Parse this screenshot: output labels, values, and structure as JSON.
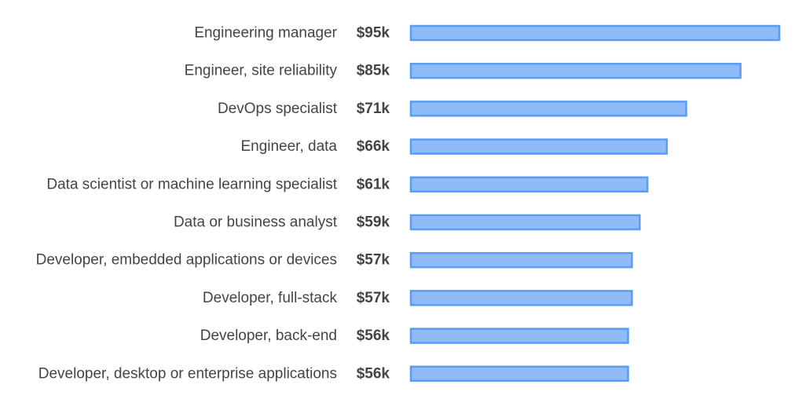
{
  "chart_data": {
    "type": "bar",
    "orientation": "horizontal",
    "categories": [
      "Engineering manager",
      "Engineer, site reliability",
      "DevOps specialist",
      "Engineer, data",
      "Data scientist or machine learning specialist",
      "Data or business analyst",
      "Developer, embedded applications or devices",
      "Developer, full-stack",
      "Developer, back-end",
      "Developer, desktop or enterprise applications"
    ],
    "values": [
      95,
      85,
      71,
      66,
      61,
      59,
      57,
      57,
      56,
      56
    ],
    "value_labels": [
      "$95k",
      "$85k",
      "$71k",
      "$66k",
      "$61k",
      "$59k",
      "$57k",
      "$57k",
      "$56k",
      "$56k"
    ],
    "title": "",
    "xlabel": "",
    "ylabel": "",
    "xlim": [
      0,
      95
    ],
    "grid": false,
    "legend": "none",
    "colors": {
      "bar_fill": "#8fbcf9",
      "bar_stroke": "#5b9cf2",
      "label_text": "#444444"
    }
  }
}
